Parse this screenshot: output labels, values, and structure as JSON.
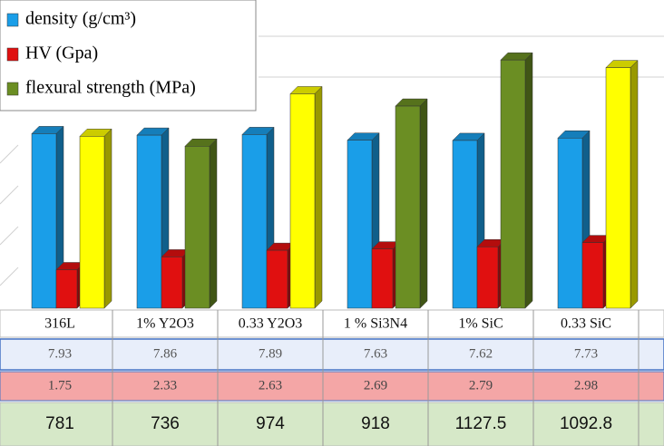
{
  "chart_data": {
    "type": "bar3d",
    "categories": [
      "316L",
      "1% Y2O3",
      "0.33 Y2O3",
      "1 % Si3N4",
      "1% SiC",
      "0.33 SiC"
    ],
    "series": [
      {
        "name": "density (g/cm³)",
        "color": "#1a9ee8",
        "values": [
          7.93,
          7.86,
          7.89,
          7.63,
          7.62,
          7.73
        ]
      },
      {
        "name": "HV (Gpa)",
        "color": "#e01010",
        "values": [
          1.75,
          2.33,
          2.63,
          2.69,
          2.79,
          2.98
        ]
      },
      {
        "name": "flexural strength (MPa)",
        "color": "#6b8e23",
        "axis": "y2",
        "values": [
          781,
          736,
          974,
          918,
          1127.5,
          1092.8
        ],
        "colors": [
          "#ffff00",
          "#6b8e23",
          "#ffff00",
          "#6b8e23",
          "#6b8e23",
          "#ffff00"
        ]
      }
    ],
    "ylim": [
      0,
      14
    ],
    "y2lim": [
      0,
      1400
    ]
  }
}
